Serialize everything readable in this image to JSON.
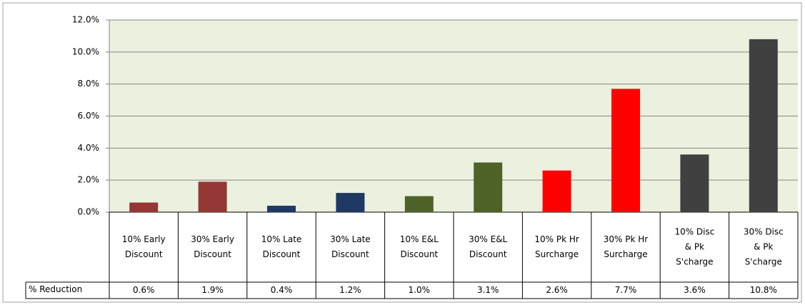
{
  "chart_data": {
    "type": "bar",
    "categories": [
      [
        "10% Early",
        "Discount"
      ],
      [
        "30% Early",
        "Discount"
      ],
      [
        "10% Late",
        "Discount"
      ],
      [
        "30% Late",
        "Discount"
      ],
      [
        "10% E&L",
        "Discount"
      ],
      [
        "30% E&L",
        "Discount"
      ],
      [
        "10% Pk Hr",
        "Surcharge"
      ],
      [
        "30% Pk Hr",
        "Surcharge"
      ],
      [
        "10% Disc",
        "& Pk",
        "S'charge"
      ],
      [
        "30% Disc",
        "& Pk",
        "S'charge"
      ]
    ],
    "table_row_label": "% Reduction",
    "values": [
      0.6,
      1.9,
      0.4,
      1.2,
      1.0,
      3.1,
      2.6,
      7.7,
      3.6,
      10.8
    ],
    "value_labels": [
      "0.6%",
      "1.9%",
      "0.4%",
      "1.2%",
      "1.0%",
      "3.1%",
      "2.6%",
      "7.7%",
      "3.6%",
      "10.8%"
    ],
    "colors": [
      "#953735",
      "#953735",
      "#1f3864",
      "#1f3864",
      "#4f6228",
      "#4f6228",
      "#ff0000",
      "#ff0000",
      "#404040",
      "#404040"
    ],
    "ylim": [
      0,
      12
    ],
    "yticks": [
      {
        "value": 0,
        "label": "0.0%"
      },
      {
        "value": 2,
        "label": "2.0%"
      },
      {
        "value": 4,
        "label": "4.0%"
      },
      {
        "value": 6,
        "label": "6.0%"
      },
      {
        "value": 8,
        "label": "8.0%"
      },
      {
        "value": 10,
        "label": "10.0%"
      },
      {
        "value": 12,
        "label": "12.0%"
      }
    ],
    "grid": true
  }
}
